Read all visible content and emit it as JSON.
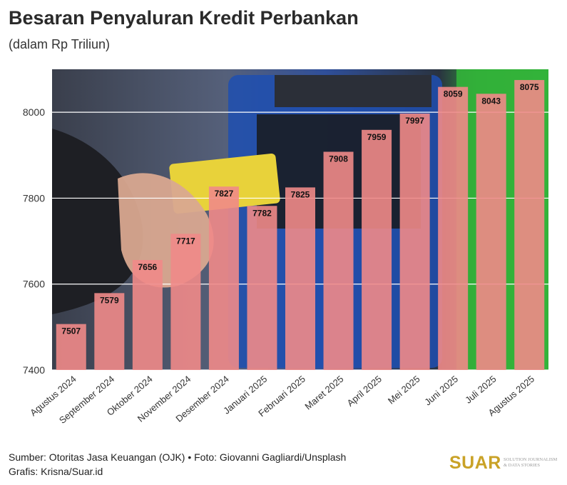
{
  "title": "Besaran Penyaluran Kredit Perbankan",
  "subtitle": "(dalam Rp Triliun)",
  "footer": {
    "source": "Sumber: Otoritas Jasa Keuangan (OJK) • Foto: Giovanni Gagliardi/Unsplash",
    "credit": "Grafis: Krisna/Suar.id"
  },
  "brand": {
    "name": "SUAR",
    "tagline_1": "SOLUTION JOURNALISM",
    "tagline_2": "& DATA STORIES"
  },
  "colors": {
    "bar": "#f08a88",
    "label_box": "#ffffff",
    "brand": "#c9a227"
  },
  "chart_data": {
    "type": "bar",
    "categories": [
      "Agustus 2024",
      "September 2024",
      "Oktober 2024",
      "November 2024",
      "Desember 2024",
      "Januari 2025",
      "Februari 2025",
      "Maret 2025",
      "April 2025",
      "Mei 2025",
      "Juni 2025",
      "Juli 2025",
      "Agustus 2025"
    ],
    "values": [
      7507,
      7579,
      7656,
      7717,
      7827,
      7782,
      7825,
      7908,
      7959,
      7997,
      8059,
      8043,
      8075
    ],
    "title": "Besaran Penyaluran Kredit Perbankan",
    "subtitle": "(dalam Rp Triliun)",
    "xlabel": "",
    "ylabel": "",
    "ylim": [
      7400,
      8100
    ],
    "yticks": [
      7400,
      7600,
      7800,
      8000
    ],
    "grid": true
  }
}
